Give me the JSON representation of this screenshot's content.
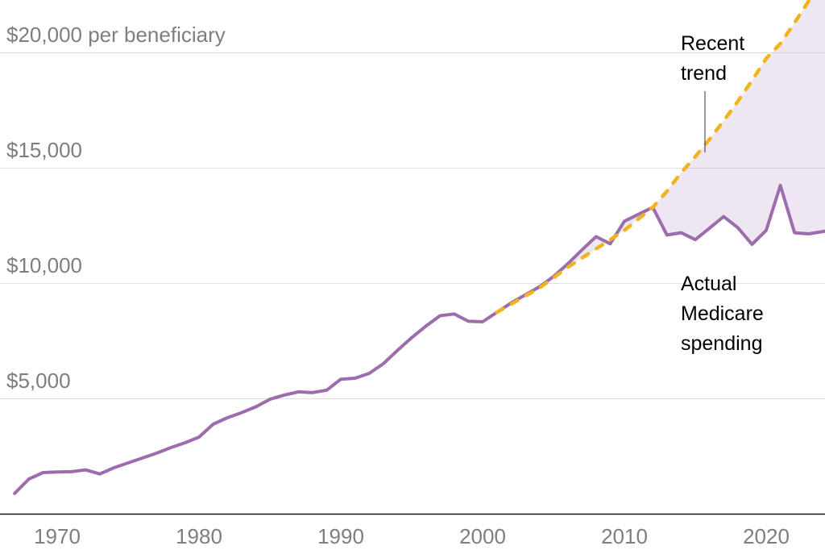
{
  "chart_data": {
    "type": "line",
    "unit_note": "per beneficiary",
    "y_axis": {
      "range": [
        0,
        22500
      ],
      "gridlines": true,
      "ticks": [
        {
          "value": 20000,
          "label": "$20,000 per beneficiary"
        },
        {
          "value": 15000,
          "label": "$15,000"
        },
        {
          "value": 10000,
          "label": "$10,000"
        },
        {
          "value": 5000,
          "label": "$5,000"
        }
      ]
    },
    "x_axis": {
      "range": [
        1967,
        2024
      ],
      "ticks": [
        {
          "value": 1970,
          "label": "1970"
        },
        {
          "value": 1980,
          "label": "1980"
        },
        {
          "value": 1990,
          "label": "1990"
        },
        {
          "value": 2000,
          "label": "2000"
        },
        {
          "value": 2010,
          "label": "2010"
        },
        {
          "value": 2020,
          "label": "2020"
        }
      ]
    },
    "series": [
      {
        "id": "actual",
        "name": "Actual Medicare spending",
        "style": "solid",
        "color": "#9c6cad",
        "points": [
          [
            1967,
            900
          ],
          [
            1968,
            1520
          ],
          [
            1969,
            1800
          ],
          [
            1970,
            1830
          ],
          [
            1971,
            1840
          ],
          [
            1972,
            1920
          ],
          [
            1973,
            1740
          ],
          [
            1974,
            2010
          ],
          [
            1975,
            2220
          ],
          [
            1976,
            2430
          ],
          [
            1977,
            2640
          ],
          [
            1978,
            2880
          ],
          [
            1979,
            3090
          ],
          [
            1980,
            3340
          ],
          [
            1981,
            3900
          ],
          [
            1982,
            4180
          ],
          [
            1983,
            4400
          ],
          [
            1984,
            4650
          ],
          [
            1985,
            4980
          ],
          [
            1986,
            5160
          ],
          [
            1987,
            5300
          ],
          [
            1988,
            5270
          ],
          [
            1989,
            5370
          ],
          [
            1990,
            5850
          ],
          [
            1991,
            5890
          ],
          [
            1992,
            6100
          ],
          [
            1993,
            6520
          ],
          [
            1994,
            7100
          ],
          [
            1995,
            7650
          ],
          [
            1996,
            8150
          ],
          [
            1997,
            8600
          ],
          [
            1998,
            8680
          ],
          [
            1999,
            8360
          ],
          [
            2000,
            8340
          ],
          [
            2001,
            8750
          ],
          [
            2002,
            9150
          ],
          [
            2003,
            9500
          ],
          [
            2004,
            9850
          ],
          [
            2005,
            10300
          ],
          [
            2006,
            10850
          ],
          [
            2007,
            11450
          ],
          [
            2008,
            12030
          ],
          [
            2009,
            11720
          ],
          [
            2010,
            12700
          ],
          [
            2011,
            13000
          ],
          [
            2012,
            13300
          ],
          [
            2013,
            12100
          ],
          [
            2014,
            12200
          ],
          [
            2015,
            11900
          ],
          [
            2016,
            12400
          ],
          [
            2017,
            12900
          ],
          [
            2018,
            12420
          ],
          [
            2019,
            11700
          ],
          [
            2020,
            12300
          ],
          [
            2021,
            14250
          ],
          [
            2022,
            12200
          ],
          [
            2023,
            12150
          ],
          [
            2024,
            12250
          ]
        ]
      },
      {
        "id": "trend",
        "name": "Recent trend",
        "style": "dashed",
        "color": "#f1b41f",
        "points": [
          [
            2001,
            8750
          ],
          [
            2002,
            9100
          ],
          [
            2003,
            9450
          ],
          [
            2004,
            9800
          ],
          [
            2005,
            10250
          ],
          [
            2006,
            10700
          ],
          [
            2007,
            11100
          ],
          [
            2008,
            11500
          ],
          [
            2009,
            11900
          ],
          [
            2010,
            12300
          ],
          [
            2011,
            12800
          ],
          [
            2012,
            13300
          ],
          [
            2013,
            14000
          ],
          [
            2014,
            14800
          ],
          [
            2015,
            15500
          ],
          [
            2016,
            16250
          ],
          [
            2017,
            17050
          ],
          [
            2018,
            17900
          ],
          [
            2019,
            18800
          ],
          [
            2020,
            19750
          ],
          [
            2021,
            20400
          ],
          [
            2022,
            21300
          ],
          [
            2023,
            22250
          ],
          [
            2024,
            23250
          ]
        ]
      }
    ],
    "shaded_gap": {
      "between": [
        "trend",
        "actual"
      ],
      "color": "rgba(156,108,173,0.17)"
    },
    "annotations": [
      {
        "id": "trend-label",
        "text": "Recent\ntrend"
      },
      {
        "id": "actual-label",
        "text": "Actual\nMedicare\nspending"
      }
    ],
    "style": {
      "grid_color": "#e0e0e0",
      "baseline_color": "#151515",
      "tick_text_color": "#7e7e7e",
      "annotation_text_color": "#000000",
      "pointer_line_color": "#555555",
      "background": "#ffffff"
    },
    "legend": "none"
  }
}
